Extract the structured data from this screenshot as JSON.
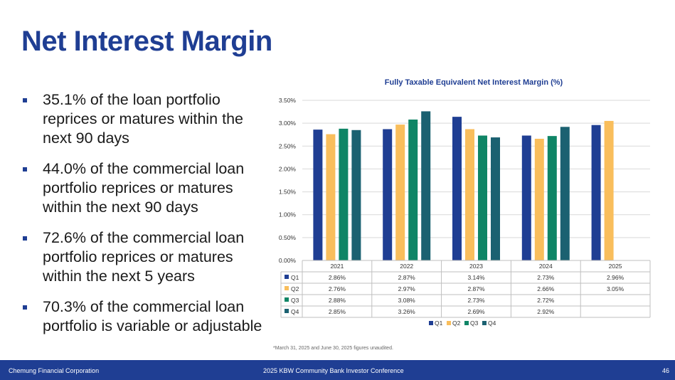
{
  "page": {
    "title": "Net Interest Margin",
    "bullets": [
      "35.1% of the loan portfolio reprices or matures within the next 90 days",
      "44.0% of the commercial loan portfolio reprices or matures within the next 90 days",
      "72.6% of the commercial loan portfolio reprices or matures within the next 5 years",
      "70.3% of the commercial loan portfolio is variable or adjustable"
    ],
    "footnote": "*March 31, 2025 and June 30, 2025 figures unaudited.",
    "footer": {
      "left": "Chemung Financial Corporation",
      "center": "2025 KBW Community Bank Investor Conference",
      "page_number": "46"
    }
  },
  "colors": {
    "title": "#1F3E93",
    "Q1": "#1F3E93",
    "Q2": "#F9BE5C",
    "Q3": "#0F8566",
    "Q4": "#1B6171"
  },
  "chart_data": {
    "type": "bar",
    "title": "Fully Taxable Equivalent Net Interest Margin (%)",
    "categories": [
      "2021",
      "2022",
      "2023",
      "2024",
      "2025"
    ],
    "series": [
      {
        "name": "Q1",
        "values": [
          2.86,
          2.87,
          3.14,
          2.73,
          2.96
        ],
        "labels": [
          "2.86%",
          "2.87%",
          "3.14%",
          "2.73%",
          "2.96%"
        ]
      },
      {
        "name": "Q2",
        "values": [
          2.76,
          2.97,
          2.87,
          2.66,
          3.05
        ],
        "labels": [
          "2.76%",
          "2.97%",
          "2.87%",
          "2.66%",
          "3.05%"
        ]
      },
      {
        "name": "Q3",
        "values": [
          2.88,
          3.08,
          2.73,
          2.72,
          null
        ],
        "labels": [
          "2.88%",
          "3.08%",
          "2.73%",
          "2.72%",
          ""
        ]
      },
      {
        "name": "Q4",
        "values": [
          2.85,
          3.26,
          2.69,
          2.92,
          null
        ],
        "labels": [
          "2.85%",
          "3.26%",
          "2.69%",
          "2.92%",
          ""
        ]
      }
    ],
    "ylim": [
      0,
      3.5
    ],
    "yticks": [
      "0.00%",
      "0.50%",
      "1.00%",
      "1.50%",
      "2.00%",
      "2.50%",
      "3.00%",
      "3.50%"
    ],
    "grid": true,
    "legend": "bottom",
    "data_table": true
  }
}
